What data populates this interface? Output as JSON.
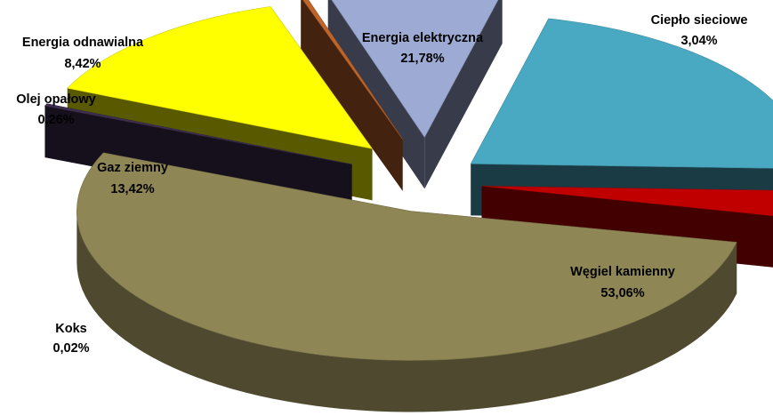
{
  "chart_data": {
    "type": "pie",
    "variant": "3d-exploded",
    "title": "",
    "slices": [
      {
        "label": "Węgiel kamienny",
        "value": "53,06%",
        "pct": 53.06,
        "color": "#8f8656"
      },
      {
        "label": "Koks",
        "value": "0,02%",
        "pct": 0.02,
        "color": "#3e2f4f"
      },
      {
        "label": "Gaz ziemny",
        "value": "13,42%",
        "pct": 13.42,
        "color": "#ffff00"
      },
      {
        "label": "Olej opałowy",
        "value": "0,26%",
        "pct": 0.26,
        "color": "#c0652a"
      },
      {
        "label": "Energia odnawialna",
        "value": "8,42%",
        "pct": 8.42,
        "color": "#9daad3"
      },
      {
        "label": "Energia elektryczna",
        "value": "21,78%",
        "pct": 21.78,
        "color": "#49a9c3"
      },
      {
        "label": "Ciepło sieciowe",
        "value": "3,04%",
        "pct": 3.04,
        "color": "#c00000"
      }
    ],
    "legend": "none"
  }
}
